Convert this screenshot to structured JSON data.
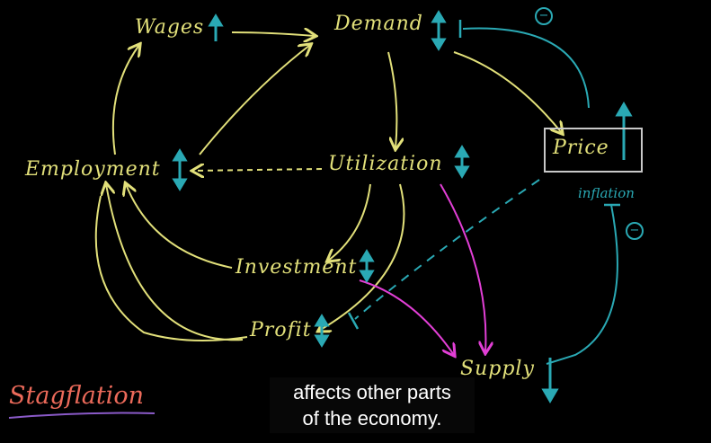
{
  "nodes": {
    "wages": "Wages",
    "demand": "Demand",
    "price": "Price",
    "employment": "Employment",
    "utilization": "Utilization",
    "investment": "Investment",
    "profit": "Profit",
    "supply": "Supply"
  },
  "labels": {
    "inflation": "inflation",
    "minus_sign": "−"
  },
  "title": "Stagflation",
  "caption": {
    "line1": "affects other parts",
    "line2": "of the economy."
  },
  "colors": {
    "background": "#000000",
    "yellow": "#e2e07a",
    "teal": "#2aa9b4",
    "magenta": "#e23fd6",
    "title": "#ec6a5a",
    "underline": "#8a5ac8"
  }
}
